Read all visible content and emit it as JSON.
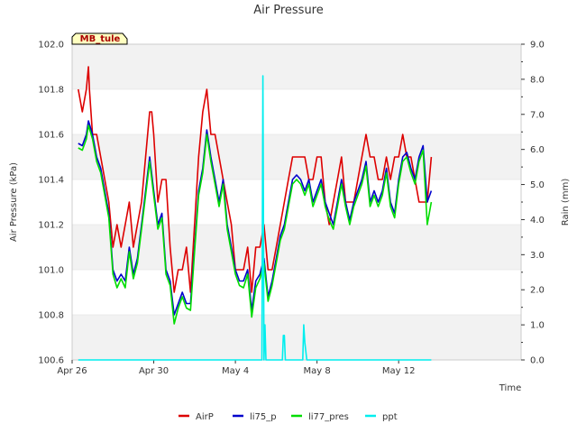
{
  "chart_data": {
    "type": "line",
    "title": "Air Pressure",
    "site_label": "MB_tule",
    "xlabel": "Time",
    "ylabel": "Air Pressure (kPa)",
    "y2label": "Rain (mm)",
    "ylim": [
      100.6,
      102.0
    ],
    "y2lim": [
      0.0,
      9.0
    ],
    "xlim_days": [
      0,
      22
    ],
    "xticks": [
      {
        "day": 0,
        "label": "Apr 26"
      },
      {
        "day": 4,
        "label": "Apr 30"
      },
      {
        "day": 8,
        "label": "May 4"
      },
      {
        "day": 12,
        "label": "May 8"
      },
      {
        "day": 16,
        "label": "May 12"
      }
    ],
    "yticks": [
      "100.6",
      "100.8",
      "101.0",
      "101.2",
      "101.4",
      "101.6",
      "101.8",
      "102.0"
    ],
    "y2ticks": [
      "0.0",
      "1.0",
      "2.0",
      "3.0",
      "4.0",
      "5.0",
      "6.0",
      "7.0",
      "8.0",
      "9.0"
    ],
    "series": [
      {
        "name": "AirP",
        "color": "#dd0000",
        "x": [
          0.3,
          0.5,
          0.7,
          0.8,
          0.85,
          1.0,
          1.2,
          1.4,
          1.6,
          1.8,
          2.0,
          2.2,
          2.4,
          2.6,
          2.8,
          3.0,
          3.2,
          3.4,
          3.6,
          3.8,
          3.9,
          4.0,
          4.2,
          4.4,
          4.6,
          4.8,
          5.0,
          5.2,
          5.4,
          5.6,
          5.8,
          6.0,
          6.2,
          6.4,
          6.6,
          6.8,
          7.0,
          7.2,
          7.4,
          7.6,
          7.8,
          8.0,
          8.2,
          8.4,
          8.6,
          8.8,
          9.0,
          9.2,
          9.4,
          9.6,
          9.8,
          10.0,
          10.2,
          10.4,
          10.6,
          10.8,
          11.0,
          11.2,
          11.4,
          11.6,
          11.8,
          12.0,
          12.2,
          12.4,
          12.6,
          12.8,
          13.0,
          13.2,
          13.4,
          13.6,
          13.8,
          14.0,
          14.2,
          14.4,
          14.6,
          14.8,
          15.0,
          15.2,
          15.4,
          15.6,
          15.8,
          16.0,
          16.2,
          16.4,
          16.6,
          16.8,
          17.0,
          17.2,
          17.4,
          17.6
        ],
        "values": [
          101.8,
          101.7,
          101.8,
          101.9,
          101.8,
          101.6,
          101.6,
          101.5,
          101.4,
          101.3,
          101.1,
          101.2,
          101.1,
          101.2,
          101.3,
          101.1,
          101.2,
          101.3,
          101.5,
          101.7,
          101.7,
          101.6,
          101.3,
          101.4,
          101.4,
          101.1,
          100.9,
          101.0,
          101.0,
          101.1,
          100.9,
          101.2,
          101.5,
          101.7,
          101.8,
          101.6,
          101.6,
          101.5,
          101.4,
          101.3,
          101.2,
          101.0,
          101.0,
          101.0,
          101.1,
          100.9,
          101.1,
          101.1,
          101.2,
          101.0,
          101.0,
          101.1,
          101.2,
          101.3,
          101.4,
          101.5,
          101.5,
          101.5,
          101.5,
          101.4,
          101.4,
          101.5,
          101.5,
          101.3,
          101.2,
          101.3,
          101.4,
          101.5,
          101.3,
          101.3,
          101.3,
          101.4,
          101.5,
          101.6,
          101.5,
          101.5,
          101.4,
          101.4,
          101.5,
          101.4,
          101.5,
          101.5,
          101.6,
          101.5,
          101.5,
          101.4,
          101.3,
          101.3,
          101.3,
          101.5
        ]
      },
      {
        "name": "li75_p",
        "color": "#0000cc",
        "x": [
          0.3,
          0.5,
          0.7,
          0.8,
          1.0,
          1.2,
          1.4,
          1.6,
          1.8,
          2.0,
          2.2,
          2.4,
          2.6,
          2.8,
          3.0,
          3.2,
          3.4,
          3.6,
          3.8,
          4.0,
          4.2,
          4.4,
          4.6,
          4.8,
          5.0,
          5.2,
          5.4,
          5.6,
          5.8,
          6.0,
          6.2,
          6.4,
          6.6,
          6.8,
          7.0,
          7.2,
          7.4,
          7.6,
          7.8,
          8.0,
          8.2,
          8.4,
          8.6,
          8.8,
          9.0,
          9.2,
          9.4,
          9.6,
          9.8,
          10.0,
          10.2,
          10.4,
          10.6,
          10.8,
          11.0,
          11.2,
          11.4,
          11.6,
          11.8,
          12.0,
          12.2,
          12.4,
          12.6,
          12.8,
          13.0,
          13.2,
          13.4,
          13.6,
          13.8,
          14.0,
          14.2,
          14.4,
          14.6,
          14.8,
          15.0,
          15.2,
          15.4,
          15.6,
          15.8,
          16.0,
          16.2,
          16.4,
          16.6,
          16.8,
          17.0,
          17.2,
          17.4,
          17.6
        ],
        "values": [
          101.56,
          101.55,
          101.6,
          101.66,
          101.6,
          101.5,
          101.45,
          101.35,
          101.25,
          101.0,
          100.95,
          100.98,
          100.95,
          101.1,
          100.98,
          101.05,
          101.2,
          101.35,
          101.5,
          101.35,
          101.2,
          101.25,
          101.0,
          100.95,
          100.8,
          100.85,
          100.9,
          100.85,
          100.85,
          101.1,
          101.35,
          101.45,
          101.62,
          101.5,
          101.4,
          101.3,
          101.4,
          101.2,
          101.1,
          101.0,
          100.95,
          100.95,
          101.0,
          100.82,
          100.95,
          100.98,
          101.05,
          100.88,
          100.95,
          101.05,
          101.15,
          101.2,
          101.3,
          101.4,
          101.42,
          101.4,
          101.35,
          101.4,
          101.3,
          101.35,
          101.4,
          101.3,
          101.25,
          101.2,
          101.3,
          101.4,
          101.3,
          101.22,
          101.3,
          101.35,
          101.4,
          101.48,
          101.3,
          101.35,
          101.3,
          101.35,
          101.45,
          101.3,
          101.25,
          101.4,
          101.5,
          101.52,
          101.45,
          101.4,
          101.5,
          101.55,
          101.3,
          101.35
        ]
      },
      {
        "name": "li77_pres",
        "color": "#00dd00",
        "x": [
          0.3,
          0.5,
          0.7,
          0.8,
          1.0,
          1.2,
          1.4,
          1.6,
          1.8,
          2.0,
          2.2,
          2.4,
          2.6,
          2.8,
          3.0,
          3.2,
          3.4,
          3.6,
          3.8,
          4.0,
          4.2,
          4.4,
          4.6,
          4.8,
          5.0,
          5.2,
          5.4,
          5.6,
          5.8,
          6.0,
          6.2,
          6.4,
          6.6,
          6.8,
          7.0,
          7.2,
          7.4,
          7.6,
          7.8,
          8.0,
          8.2,
          8.4,
          8.6,
          8.8,
          9.0,
          9.2,
          9.4,
          9.6,
          9.8,
          10.0,
          10.2,
          10.4,
          10.6,
          10.8,
          11.0,
          11.2,
          11.4,
          11.6,
          11.8,
          12.0,
          12.2,
          12.4,
          12.6,
          12.8,
          13.0,
          13.2,
          13.4,
          13.6,
          13.8,
          14.0,
          14.2,
          14.4,
          14.6,
          14.8,
          15.0,
          15.2,
          15.4,
          15.6,
          15.8,
          16.0,
          16.2,
          16.4,
          16.6,
          16.8,
          17.0,
          17.2,
          17.4,
          17.6
        ],
        "values": [
          101.54,
          101.53,
          101.58,
          101.64,
          101.58,
          101.48,
          101.43,
          101.33,
          101.23,
          100.98,
          100.92,
          100.96,
          100.92,
          101.08,
          100.96,
          101.03,
          101.18,
          101.33,
          101.48,
          101.33,
          101.18,
          101.23,
          100.98,
          100.93,
          100.76,
          100.83,
          100.88,
          100.83,
          100.82,
          101.08,
          101.33,
          101.43,
          101.6,
          101.48,
          101.38,
          101.28,
          101.38,
          101.18,
          101.08,
          100.98,
          100.93,
          100.92,
          100.98,
          100.79,
          100.92,
          100.96,
          101.03,
          100.86,
          100.93,
          101.03,
          101.13,
          101.18,
          101.28,
          101.38,
          101.4,
          101.38,
          101.33,
          101.38,
          101.28,
          101.33,
          101.38,
          101.28,
          101.22,
          101.18,
          101.28,
          101.38,
          101.28,
          101.2,
          101.28,
          101.33,
          101.38,
          101.46,
          101.28,
          101.33,
          101.28,
          101.33,
          101.43,
          101.28,
          101.23,
          101.38,
          101.48,
          101.5,
          101.43,
          101.38,
          101.48,
          101.53,
          101.2,
          101.3
        ]
      },
      {
        "name": "ppt",
        "color": "#00eeee",
        "x": [
          0.3,
          9.3,
          9.35,
          9.4,
          9.45,
          9.5,
          10.3,
          10.35,
          10.4,
          10.45,
          11.3,
          11.35,
          11.4,
          11.45,
          11.5,
          17.6
        ],
        "values": [
          0.0,
          0.0,
          8.1,
          0.0,
          1.0,
          0.0,
          0.0,
          0.7,
          0.7,
          0.0,
          0.0,
          1.0,
          0.5,
          0.25,
          0.0,
          0.0
        ]
      }
    ],
    "legend_position": "bottom-center"
  }
}
